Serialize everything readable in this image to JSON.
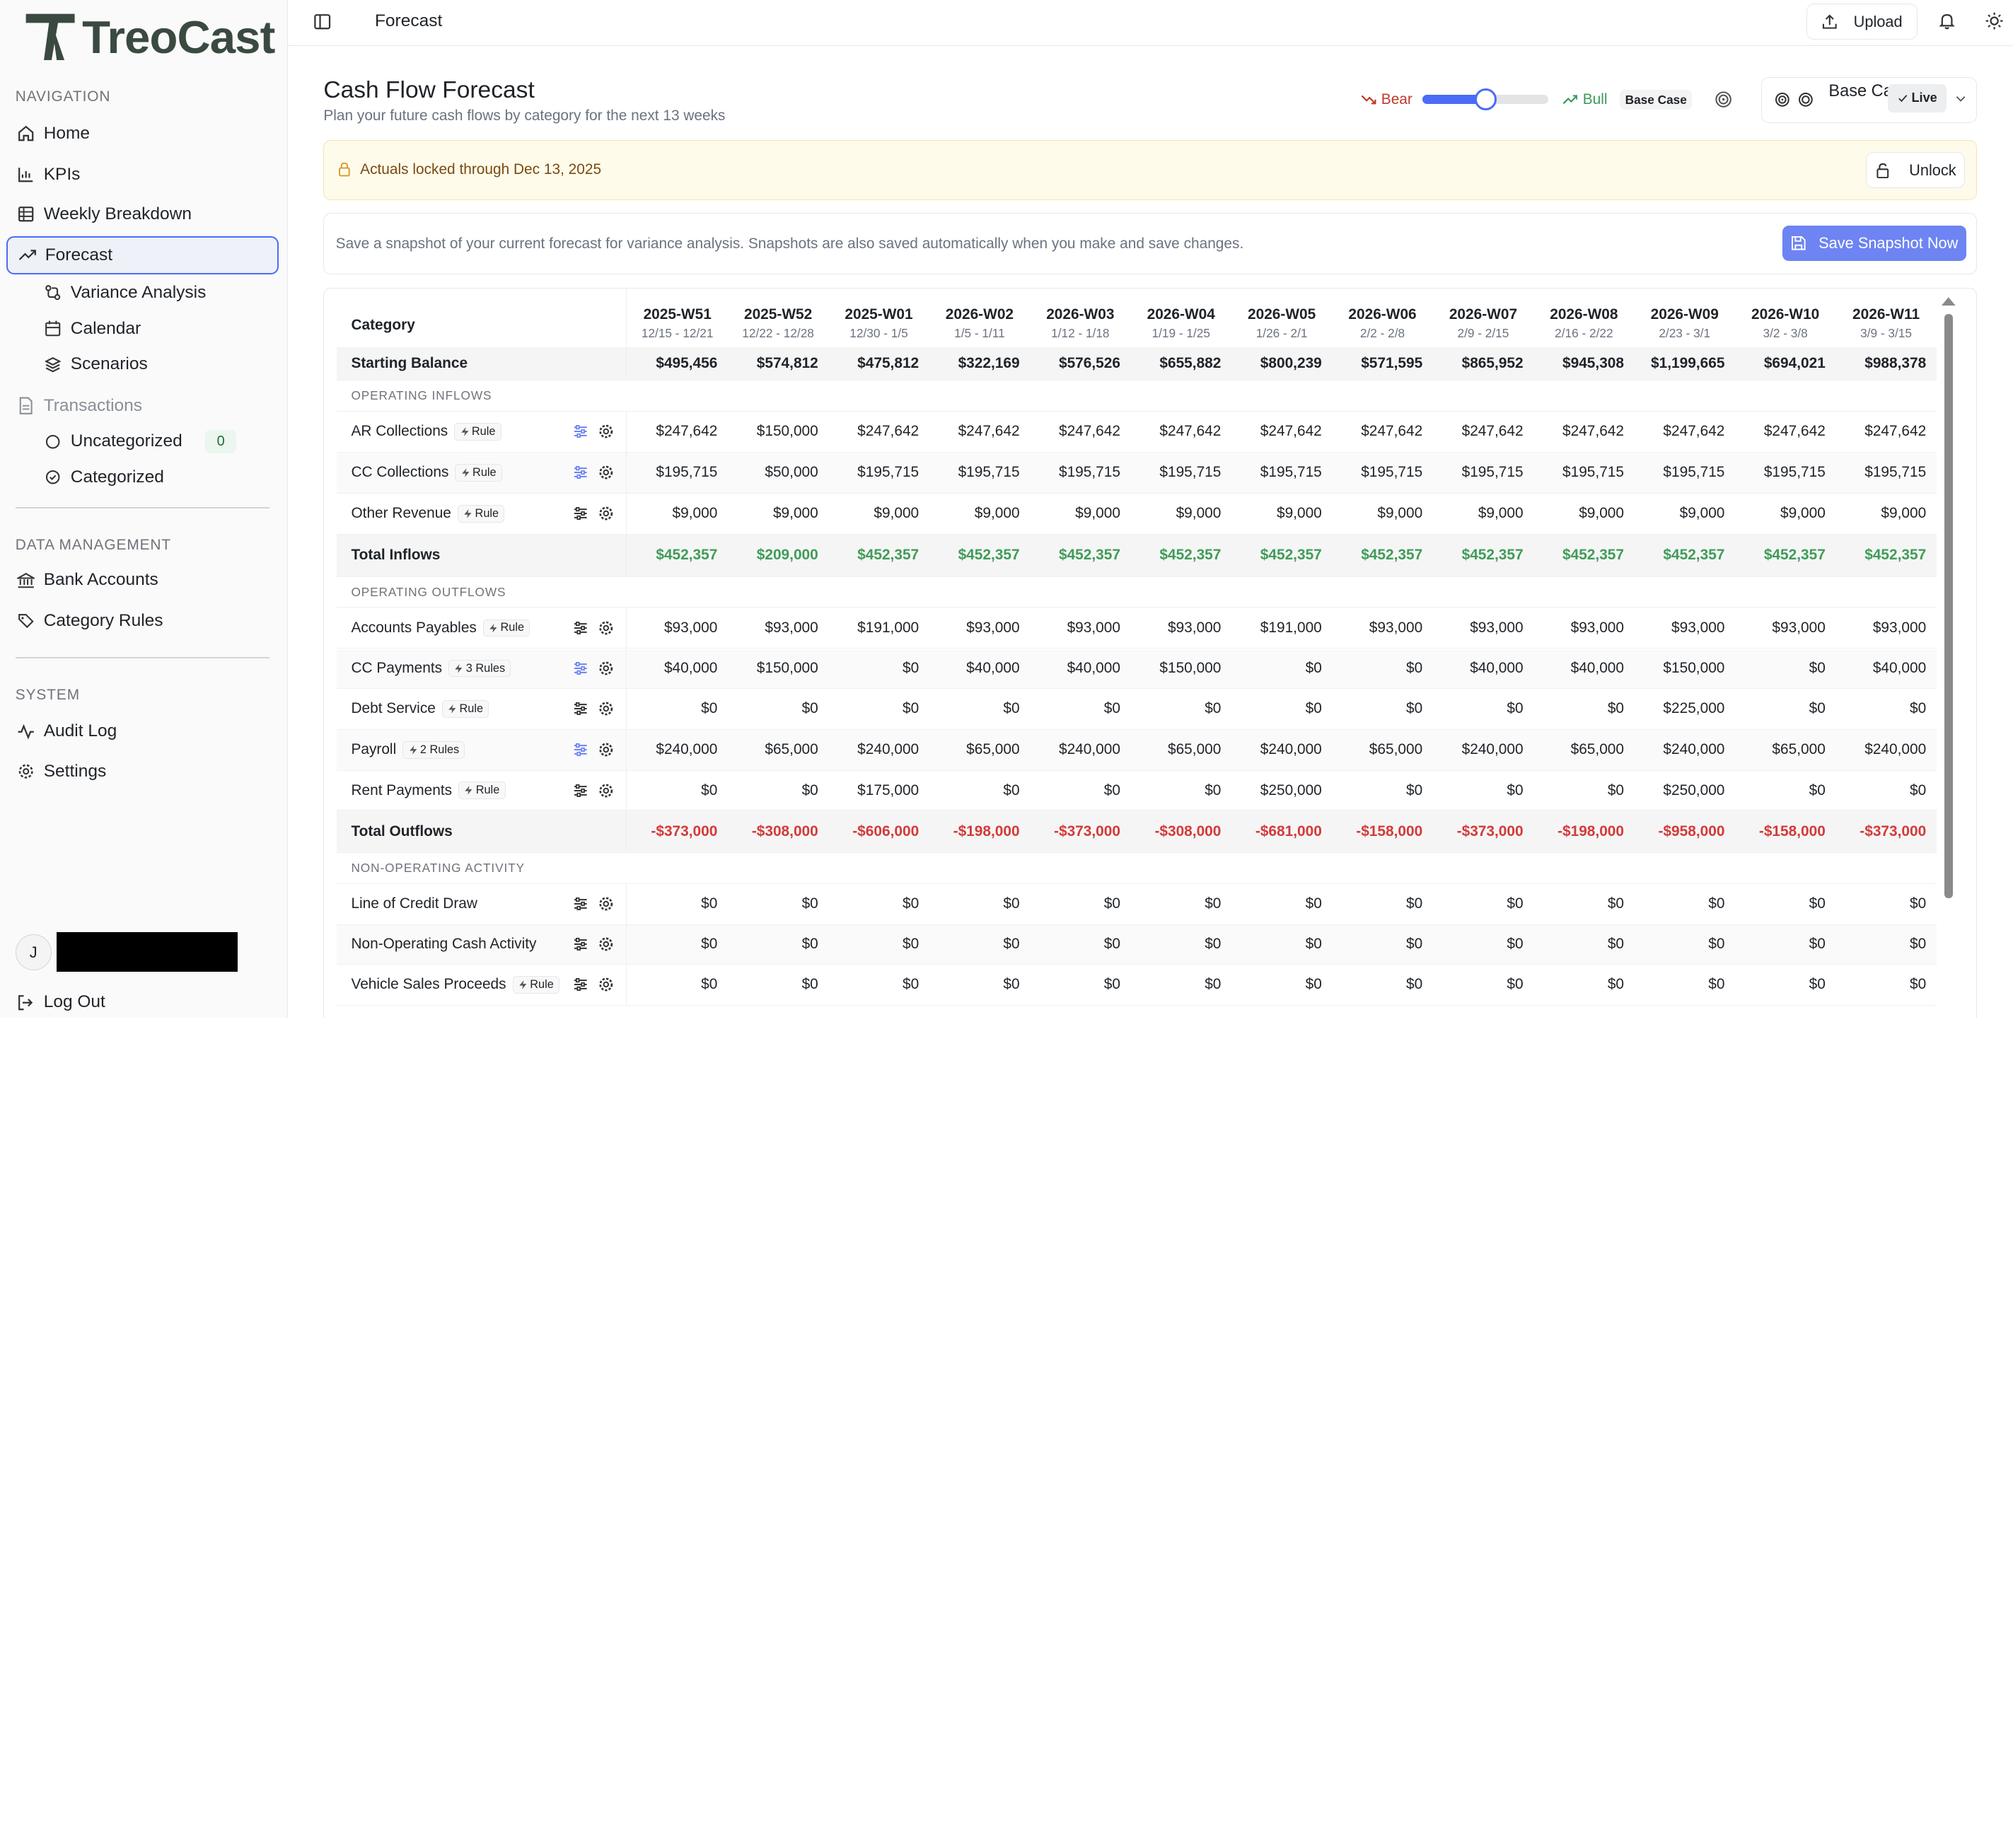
{
  "app": {
    "name": "TreoCast"
  },
  "sidebar": {
    "navigation_label": "NAVIGATION",
    "items": [
      {
        "label": "Home"
      },
      {
        "label": "KPIs"
      },
      {
        "label": "Weekly Breakdown"
      },
      {
        "label": "Forecast"
      }
    ],
    "forecast_sub": [
      {
        "label": "Variance Analysis"
      },
      {
        "label": "Calendar"
      },
      {
        "label": "Scenarios"
      }
    ],
    "transactions": {
      "label": "Transactions",
      "sub": [
        {
          "label": "Uncategorized",
          "count": "0"
        },
        {
          "label": "Categorized"
        }
      ]
    },
    "data_management_label": "DATA MANAGEMENT",
    "dm_items": [
      {
        "label": "Bank Accounts"
      },
      {
        "label": "Category Rules"
      }
    ],
    "system_label": "SYSTEM",
    "sys_items": [
      {
        "label": "Audit Log"
      },
      {
        "label": "Settings"
      }
    ],
    "user_initial": "J",
    "logout": "Log Out"
  },
  "topbar": {
    "title": "Forecast",
    "upload": "Upload"
  },
  "header": {
    "title": "Cash Flow Forecast",
    "subtitle": "Plan your future cash flows by category for the next 13 weeks"
  },
  "scenario_slider": {
    "bear": "Bear",
    "bull": "Bull",
    "value_pct": 50,
    "pill": "Base Case"
  },
  "scenario_select": {
    "name": "Base Case",
    "status": "Live"
  },
  "lock_banner": {
    "text": "Actuals locked through Dec 13, 2025",
    "button": "Unlock"
  },
  "snapshot": {
    "text": "Save a snapshot of your current forecast for variance analysis. Snapshots are also saved automatically when you make and save changes.",
    "button": "Save Snapshot Now"
  },
  "table": {
    "category_header": "Category",
    "weeks": [
      {
        "w": "2025-W51",
        "d": "12/15 - 12/21"
      },
      {
        "w": "2025-W52",
        "d": "12/22 - 12/28"
      },
      {
        "w": "2025-W01",
        "d": "12/30 - 1/5"
      },
      {
        "w": "2026-W02",
        "d": "1/5 - 1/11"
      },
      {
        "w": "2026-W03",
        "d": "1/12 - 1/18"
      },
      {
        "w": "2026-W04",
        "d": "1/19 - 1/25"
      },
      {
        "w": "2026-W05",
        "d": "1/26 - 2/1"
      },
      {
        "w": "2026-W06",
        "d": "2/2 - 2/8"
      },
      {
        "w": "2026-W07",
        "d": "2/9 - 2/15"
      },
      {
        "w": "2026-W08",
        "d": "2/16 - 2/22"
      },
      {
        "w": "2026-W09",
        "d": "2/23 - 3/1"
      },
      {
        "w": "2026-W10",
        "d": "3/2 - 3/8"
      },
      {
        "w": "2026-W11",
        "d": "3/9 - 3/15"
      }
    ],
    "starting_balance": {
      "label": "Starting Balance",
      "values": [
        "$495,456",
        "$574,812",
        "$475,812",
        "$322,169",
        "$576,526",
        "$655,882",
        "$800,239",
        "$571,595",
        "$865,952",
        "$945,308",
        "$1,199,665",
        "$694,021",
        "$988,378"
      ]
    },
    "sections": [
      {
        "title": "OPERATING INFLOWS",
        "rows": [
          {
            "label": "AR Collections",
            "rule": "Rule",
            "values": [
              "$247,642",
              "$150,000",
              "$247,642",
              "$247,642",
              "$247,642",
              "$247,642",
              "$247,642",
              "$247,642",
              "$247,642",
              "$247,642",
              "$247,642",
              "$247,642",
              "$247,642"
            ]
          },
          {
            "label": "CC Collections",
            "rule": "Rule",
            "values": [
              "$195,715",
              "$50,000",
              "$195,715",
              "$195,715",
              "$195,715",
              "$195,715",
              "$195,715",
              "$195,715",
              "$195,715",
              "$195,715",
              "$195,715",
              "$195,715",
              "$195,715"
            ]
          },
          {
            "label": "Other Revenue",
            "rule": "Rule",
            "values": [
              "$9,000",
              "$9,000",
              "$9,000",
              "$9,000",
              "$9,000",
              "$9,000",
              "$9,000",
              "$9,000",
              "$9,000",
              "$9,000",
              "$9,000",
              "$9,000",
              "$9,000"
            ]
          }
        ],
        "total": {
          "label": "Total Inflows",
          "values": [
            "$452,357",
            "$209,000",
            "$452,357",
            "$452,357",
            "$452,357",
            "$452,357",
            "$452,357",
            "$452,357",
            "$452,357",
            "$452,357",
            "$452,357",
            "$452,357",
            "$452,357"
          ]
        }
      },
      {
        "title": "OPERATING OUTFLOWS",
        "rows": [
          {
            "label": "Accounts Payables",
            "rule": "Rule",
            "values": [
              "$93,000",
              "$93,000",
              "$191,000",
              "$93,000",
              "$93,000",
              "$93,000",
              "$191,000",
              "$93,000",
              "$93,000",
              "$93,000",
              "$93,000",
              "$93,000",
              "$93,000"
            ]
          },
          {
            "label": "CC Payments",
            "rule": "3 Rules",
            "values": [
              "$40,000",
              "$150,000",
              "$0",
              "$40,000",
              "$40,000",
              "$150,000",
              "$0",
              "$0",
              "$40,000",
              "$40,000",
              "$150,000",
              "$0",
              "$40,000"
            ]
          },
          {
            "label": "Debt Service",
            "rule": "Rule",
            "values": [
              "$0",
              "$0",
              "$0",
              "$0",
              "$0",
              "$0",
              "$0",
              "$0",
              "$0",
              "$0",
              "$225,000",
              "$0",
              "$0"
            ]
          },
          {
            "label": "Payroll",
            "rule": "2 Rules",
            "values": [
              "$240,000",
              "$65,000",
              "$240,000",
              "$65,000",
              "$240,000",
              "$65,000",
              "$240,000",
              "$65,000",
              "$240,000",
              "$65,000",
              "$240,000",
              "$65,000",
              "$240,000"
            ]
          },
          {
            "label": "Rent Payments",
            "rule": "Rule",
            "values": [
              "$0",
              "$0",
              "$175,000",
              "$0",
              "$0",
              "$0",
              "$250,000",
              "$0",
              "$0",
              "$0",
              "$250,000",
              "$0",
              "$0"
            ]
          }
        ],
        "total": {
          "label": "Total Outflows",
          "values": [
            "-$373,000",
            "-$308,000",
            "-$606,000",
            "-$198,000",
            "-$373,000",
            "-$308,000",
            "-$681,000",
            "-$158,000",
            "-$373,000",
            "-$198,000",
            "-$958,000",
            "-$158,000",
            "-$373,000"
          ]
        }
      },
      {
        "title": "NON-OPERATING ACTIVITY",
        "rows": [
          {
            "label": "Line of Credit Draw",
            "rule": "",
            "values": [
              "$0",
              "$0",
              "$0",
              "$0",
              "$0",
              "$0",
              "$0",
              "$0",
              "$0",
              "$0",
              "$0",
              "$0",
              "$0"
            ]
          },
          {
            "label": "Non-Operating Cash Activity",
            "rule": "",
            "values": [
              "$0",
              "$0",
              "$0",
              "$0",
              "$0",
              "$0",
              "$0",
              "$0",
              "$0",
              "$0",
              "$0",
              "$0",
              "$0"
            ]
          },
          {
            "label": "Vehicle Sales Proceeds",
            "rule": "Rule",
            "values": [
              "$0",
              "$0",
              "$0",
              "$0",
              "$0",
              "$0",
              "$0",
              "$0",
              "$0",
              "$0",
              "$0",
              "$0",
              "$0"
            ]
          }
        ]
      }
    ]
  }
}
